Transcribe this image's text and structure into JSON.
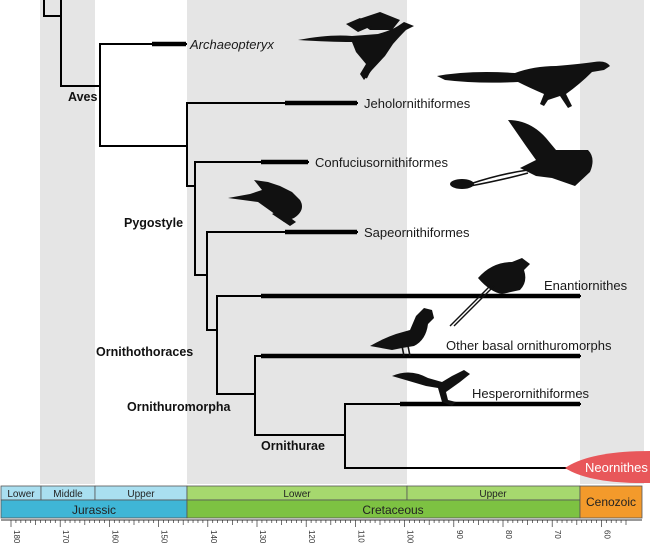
{
  "taxa": {
    "archaeopteryx": "Archaeopteryx",
    "jeholornithiformes": "Jeholornithiformes",
    "confuciusornithiformes": "Confuciusornithiformes",
    "sapeornithiformes": "Sapeornithiformes",
    "enantiornithes": "Enantiornithes",
    "other_basal": "Other basal ornithuromorphs",
    "hesperornithiformes": "Hesperornithiformes",
    "neornithes": "Neornithes"
  },
  "nodes": {
    "aves": "Aves",
    "pygostyle": "Pygostyle",
    "ornithothoraces": "Ornithothoraces",
    "ornithuromorpha": "Ornithuromorpha",
    "ornithurae": "Ornithurae"
  },
  "timescale": {
    "epochs": [
      "Lower",
      "Middle",
      "Upper",
      "Lower",
      "Upper"
    ],
    "periods": [
      "Jurassic",
      "Cretaceous",
      "Cenozoic"
    ],
    "ticks": [
      "180",
      "170",
      "160",
      "150",
      "140",
      "130",
      "120",
      "110",
      "100",
      "90",
      "80",
      "70",
      "60"
    ]
  },
  "colors": {
    "jurassic": "#3fb6d6",
    "jurassic_epoch": "#a9dff0",
    "cretaceous": "#7dc242",
    "cretaceous_epoch": "#a6d86e",
    "cenozoic": "#f39a2b",
    "neornithes": "#e8575a",
    "band": "#e5e5e5"
  },
  "icons": [
    "bird-silhouette-icon"
  ]
}
